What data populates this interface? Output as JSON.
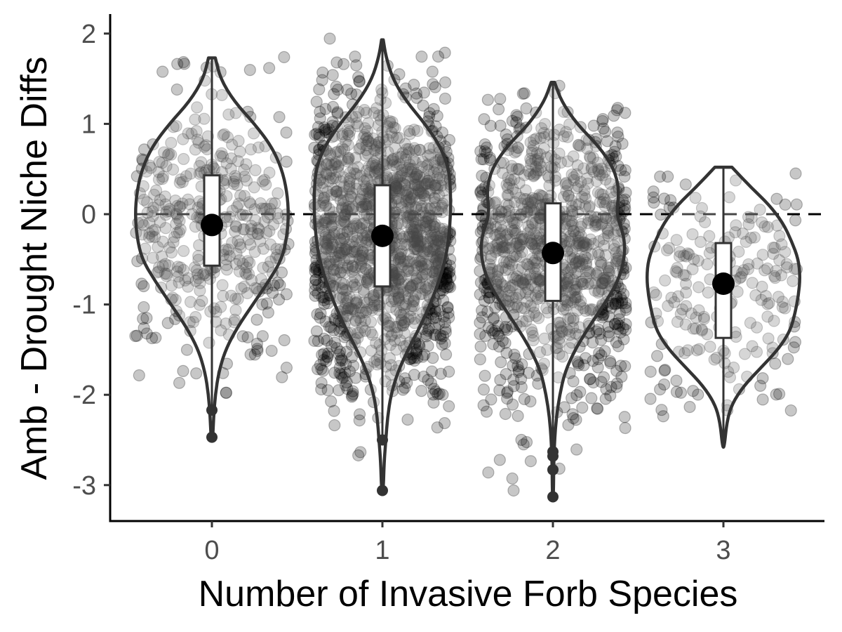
{
  "chart_data": {
    "type": "violin",
    "xlabel": "Number of Invasive Forb Species",
    "ylabel": "Amb - Drought Niche Diffs",
    "categories": [
      "0",
      "1",
      "2",
      "3"
    ],
    "ylim": [
      -3.4,
      2.2
    ],
    "y_ticks": [
      2,
      1,
      0,
      -1,
      -2,
      -3
    ],
    "y_tick_labels": [
      "2",
      "1",
      "0",
      "-1",
      "-2",
      "-3"
    ],
    "reference_line": {
      "y": 0,
      "style": "dashed",
      "color": "#000000"
    },
    "grid": false,
    "legend": "none",
    "point_color": "#000000",
    "point_opacity": 0.22,
    "violin_color": "#333333",
    "groups": [
      {
        "category": "0",
        "violin": {
          "y": [
            1.73,
            1.5,
            1.25,
            1.0,
            0.75,
            0.5,
            0.25,
            0.0,
            -0.25,
            -0.5,
            -0.75,
            -1.0,
            -1.25,
            -1.5,
            -1.75,
            -2.0,
            -2.25,
            -2.48
          ],
          "half_width": [
            0.02,
            0.05,
            0.13,
            0.25,
            0.35,
            0.41,
            0.44,
            0.45,
            0.44,
            0.41,
            0.33,
            0.24,
            0.15,
            0.08,
            0.04,
            0.02,
            0.01,
            0.005
          ]
        },
        "box": {
          "q1": -0.57,
          "median": -0.15,
          "q3": 0.43
        },
        "mean": -0.12,
        "whisker": [
          -2.15,
          1.73
        ],
        "outliers": [
          -2.17,
          -2.47
        ],
        "point_count": 420,
        "point_spread": 0.9,
        "point_min": -2.0,
        "point_max": 1.75
      },
      {
        "category": "1",
        "violin": {
          "y": [
            1.93,
            1.75,
            1.5,
            1.25,
            1.0,
            0.75,
            0.5,
            0.25,
            0.0,
            -0.25,
            -0.5,
            -0.75,
            -1.0,
            -1.25,
            -1.5,
            -1.75,
            -2.0,
            -2.25,
            -2.5,
            -2.75,
            -3.06
          ],
          "half_width": [
            0.005,
            0.02,
            0.06,
            0.14,
            0.25,
            0.34,
            0.39,
            0.4,
            0.4,
            0.39,
            0.37,
            0.33,
            0.28,
            0.22,
            0.15,
            0.09,
            0.05,
            0.03,
            0.02,
            0.01,
            0.005
          ]
        },
        "box": {
          "q1": -0.8,
          "median": -0.25,
          "q3": 0.32
        },
        "mean": -0.24,
        "whisker": [
          -2.48,
          1.93
        ],
        "outliers": [
          -2.5,
          -3.06
        ],
        "point_count": 1400,
        "point_spread": 0.8,
        "point_min": -3.0,
        "point_max": 1.95
      },
      {
        "category": "2",
        "violin": {
          "y": [
            1.46,
            1.25,
            1.0,
            0.75,
            0.5,
            0.25,
            0.0,
            -0.25,
            -0.5,
            -0.75,
            -1.0,
            -1.25,
            -1.5,
            -1.75,
            -2.0,
            -2.25,
            -2.5,
            -2.75,
            -3.13
          ],
          "half_width": [
            0.01,
            0.05,
            0.14,
            0.27,
            0.36,
            0.39,
            0.37,
            0.42,
            0.42,
            0.38,
            0.3,
            0.21,
            0.13,
            0.07,
            0.04,
            0.02,
            0.01,
            0.005,
            0.003
          ]
        },
        "box": {
          "q1": -0.96,
          "median": -0.43,
          "q3": 0.12
        },
        "mean": -0.43,
        "whisker": [
          -2.55,
          1.46
        ],
        "outliers": [
          -2.63,
          -2.68,
          -2.83,
          -3.13
        ],
        "point_count": 1000,
        "point_spread": 0.86,
        "point_min": -3.13,
        "point_max": 1.45
      },
      {
        "category": "3",
        "violin": {
          "y": [
            0.52,
            0.3,
            0.1,
            -0.1,
            -0.3,
            -0.5,
            -0.7,
            -0.9,
            -1.1,
            -1.3,
            -1.5,
            -1.7,
            -1.9,
            -2.1,
            -2.3,
            -2.58
          ],
          "half_width": [
            0.05,
            0.16,
            0.27,
            0.35,
            0.4,
            0.44,
            0.45,
            0.44,
            0.42,
            0.39,
            0.32,
            0.22,
            0.12,
            0.05,
            0.02,
            0.005
          ]
        },
        "box": {
          "q1": -1.37,
          "median": -0.78,
          "q3": -0.32
        },
        "mean": -0.77,
        "whisker": [
          -2.58,
          0.52
        ],
        "outliers": [],
        "point_count": 210,
        "point_spread": 0.86,
        "point_min": -2.25,
        "point_max": 0.52
      }
    ]
  }
}
